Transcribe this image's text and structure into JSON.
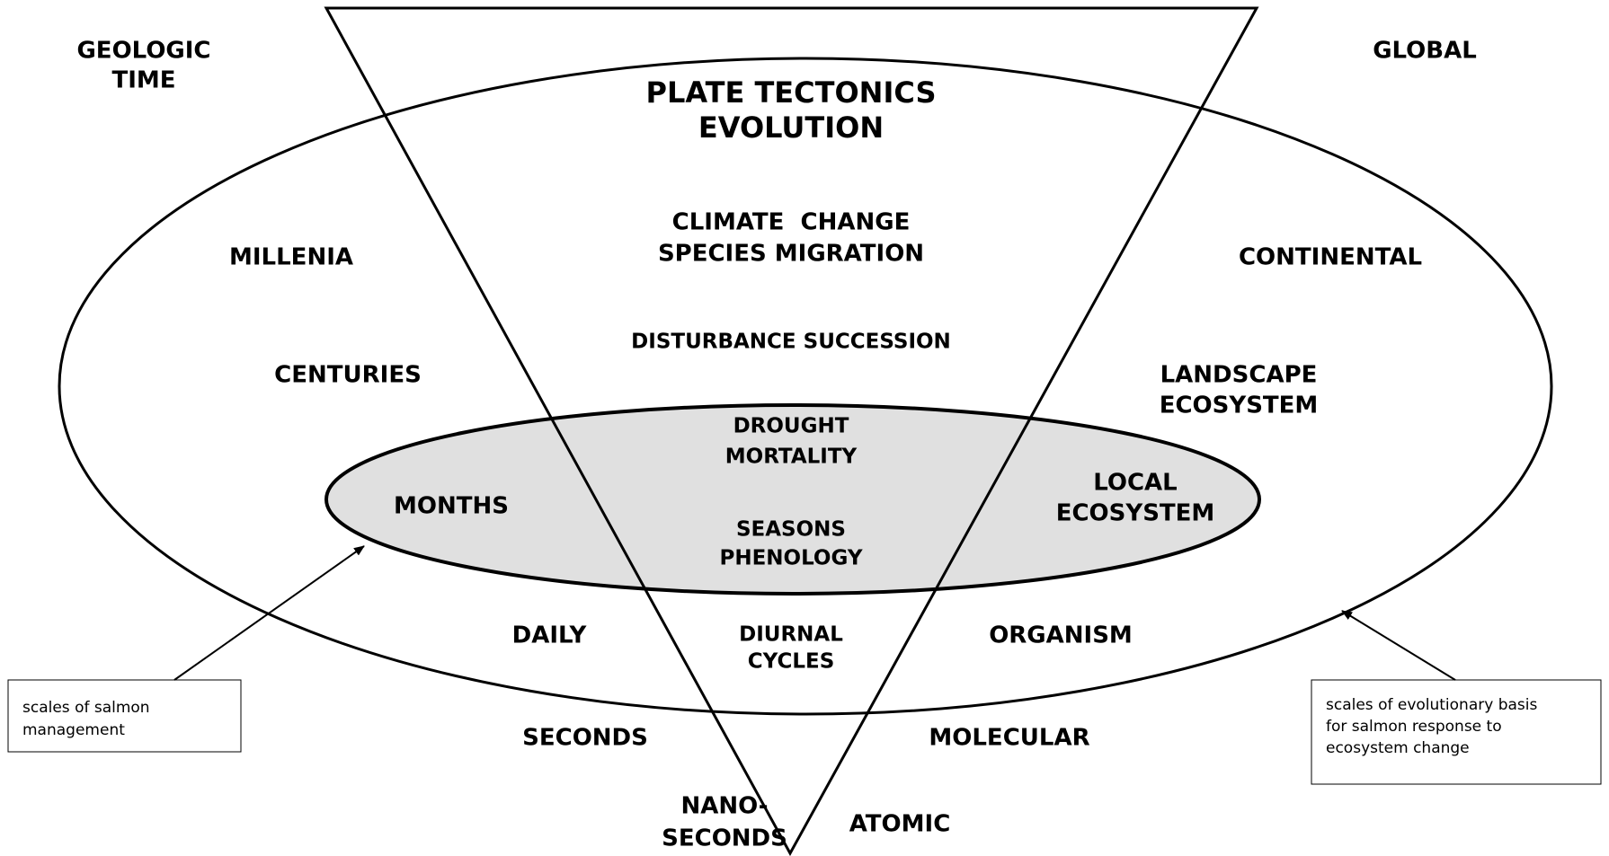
{
  "diagram": {
    "time_labels": {
      "geologic_time": [
        "GEOLOGIC",
        "TIME"
      ],
      "millenia": "MILLENIA",
      "centuries": "CENTURIES",
      "months": "MONTHS",
      "daily": "DAILY",
      "seconds": "SECONDS",
      "nano_seconds": [
        "NANO-",
        "SECONDS"
      ]
    },
    "space_labels": {
      "global": "GLOBAL",
      "continental": "CONTINENTAL",
      "landscape": [
        "LANDSCAPE",
        "ECOSYSTEM"
      ],
      "local": [
        "LOCAL",
        "ECOSYSTEM"
      ],
      "organism": "ORGANISM",
      "molecular": "MOLECULAR",
      "atomic": "ATOMIC"
    },
    "processes": {
      "plate_tectonics": [
        "PLATE TECTONICS",
        "EVOLUTION"
      ],
      "climate_change": [
        "CLIMATE  CHANGE",
        "SPECIES MIGRATION"
      ],
      "disturbance": "DISTURBANCE SUCCESSION",
      "drought": [
        "DROUGHT",
        "MORTALITY"
      ],
      "seasons": [
        "SEASONS",
        "PHENOLOGY"
      ],
      "diurnal": [
        "DIURNAL",
        "CYCLES"
      ]
    },
    "callouts": {
      "management": [
        "scales of salmon",
        "management"
      ],
      "evolutionary": [
        "scales of evolutionary basis",
        "for salmon response to",
        "ecosystem change"
      ]
    }
  }
}
